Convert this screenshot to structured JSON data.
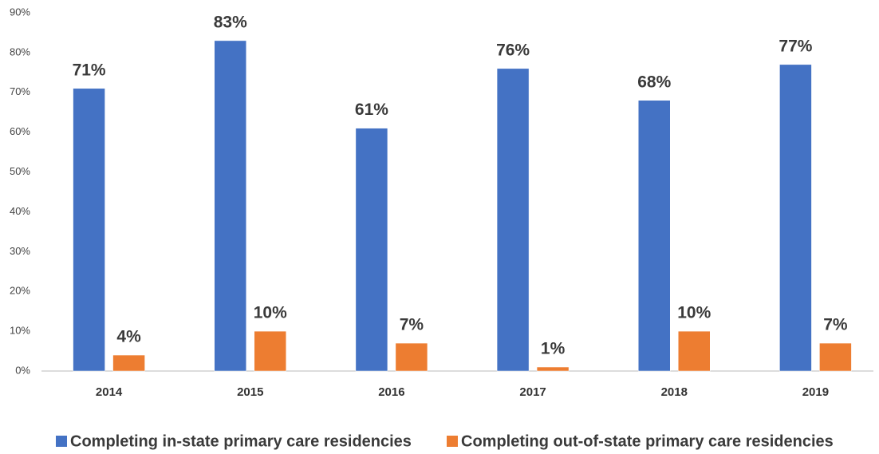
{
  "chart_data": {
    "type": "bar",
    "categories": [
      "2014",
      "2015",
      "2016",
      "2017",
      "2018",
      "2019"
    ],
    "series": [
      {
        "name": "Completing in-state primary care residencies",
        "color": "#4472c4",
        "values": [
          71,
          83,
          61,
          76,
          68,
          77
        ],
        "value_labels": [
          "71%",
          "83%",
          "61%",
          "76%",
          "68%",
          "77%"
        ]
      },
      {
        "name": "Completing out-of-state primary care residencies",
        "color": "#ed7d31",
        "values": [
          4,
          10,
          7,
          1,
          10,
          7
        ],
        "value_labels": [
          "4%",
          "10%",
          "7%",
          "1%",
          "10%",
          "7%"
        ]
      }
    ],
    "ylim": [
      0,
      90
    ],
    "yticks": [
      {
        "value": 0,
        "label": "0%"
      },
      {
        "value": 10,
        "label": "10%"
      },
      {
        "value": 20,
        "label": "20%"
      },
      {
        "value": 30,
        "label": "30%"
      },
      {
        "value": 40,
        "label": "40%"
      },
      {
        "value": 50,
        "label": "50%"
      },
      {
        "value": 60,
        "label": "60%"
      },
      {
        "value": 70,
        "label": "70%"
      },
      {
        "value": 80,
        "label": "80%"
      },
      {
        "value": 90,
        "label": "90%"
      }
    ],
    "grid": false,
    "legend": "bottom"
  }
}
